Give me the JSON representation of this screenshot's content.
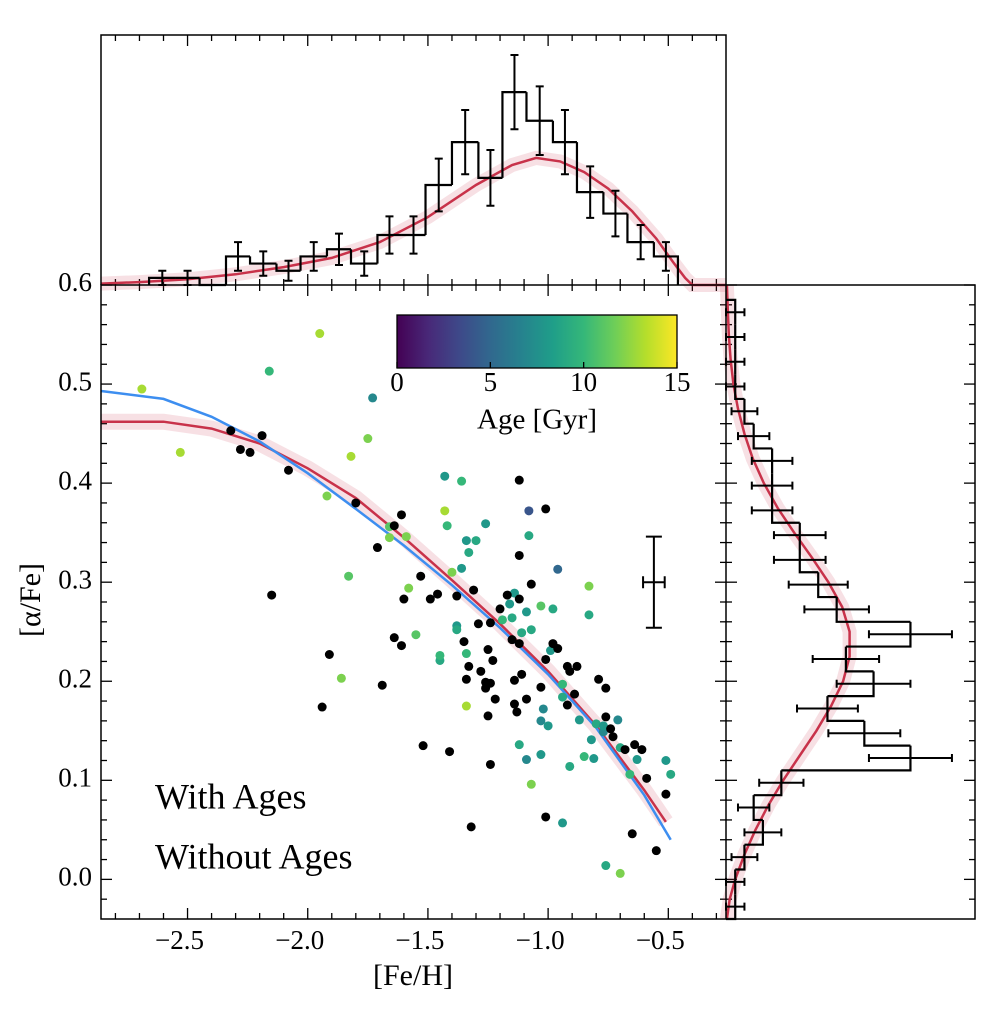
{
  "chart_data": [
    {
      "type": "scatter",
      "xlabel": "[Fe/H]",
      "ylabel": "[α/Fe]",
      "xlim": [
        -2.86,
        -0.26
      ],
      "ylim": [
        -0.04,
        0.6
      ],
      "xticks": [
        {
          "value": -2.5,
          "label": "−2.5"
        },
        {
          "value": -2.0,
          "label": "−2.0"
        },
        {
          "value": -1.5,
          "label": "−1.5"
        },
        {
          "value": -1.0,
          "label": "−1.0"
        },
        {
          "value": -0.5,
          "label": "−0.5"
        }
      ],
      "yticks": [
        {
          "value": 0.0,
          "label": "0.0"
        },
        0.1,
        0.2,
        0.3,
        0.4,
        0.5,
        0.6
      ],
      "xminorticks": [
        -2.8,
        -2.7,
        -2.6,
        -2.4,
        -2.3,
        -2.2,
        -2.1,
        -1.9,
        -1.8,
        -1.7,
        -1.6,
        -1.4,
        -1.3,
        -1.2,
        -1.1,
        -0.9,
        -0.8,
        -0.7,
        -0.6,
        -0.4,
        -0.3
      ],
      "yminorticks": [
        -0.02,
        0.02,
        0.04,
        0.06,
        0.08,
        0.12,
        0.14,
        0.16,
        0.18,
        0.22,
        0.24,
        0.26,
        0.28,
        0.32,
        0.34,
        0.36,
        0.38,
        0.42,
        0.44,
        0.46,
        0.48,
        0.52,
        0.54,
        0.56,
        0.58
      ],
      "points": {
        "x": [
          -2.69,
          -2.53,
          -1.95,
          -2.16,
          -1.73,
          -1.75,
          -1.82,
          -1.92,
          -1.83,
          -1.86,
          -1.66,
          -1.66,
          -1.59,
          -1.58,
          -1.55,
          -1.45,
          -1.45,
          -1.43,
          -1.36,
          -1.43,
          -1.42,
          -1.34,
          -1.3,
          -1.26,
          -1.33,
          -1.4,
          -1.36,
          -1.38,
          -1.38,
          -1.34,
          -1.34,
          -1.19,
          -1.15,
          -1.14,
          -1.16,
          -1.11,
          -1.09,
          -1.07,
          -1.03,
          -0.98,
          -0.99,
          -1.08,
          -1.08,
          -0.96,
          -0.83,
          -0.94,
          -0.94,
          -1.02,
          -1.03,
          -1.0,
          -0.87,
          -0.8,
          -0.77,
          -0.82,
          -0.71,
          -1.12,
          -1.09,
          -1.03,
          -0.91,
          -0.85,
          -0.81,
          -0.7,
          -0.63,
          -0.51,
          -0.49,
          -0.66,
          -1.07,
          -0.94,
          -0.76,
          -0.7,
          -0.83,
          -0.77,
          -2.32,
          -2.28,
          -2.19,
          -2.24,
          -2.08,
          -1.8,
          -1.71,
          -1.64,
          -1.61,
          -2.15,
          -1.91,
          -1.94,
          -1.69,
          -1.61,
          -1.64,
          -1.53,
          -1.52,
          -1.46,
          -1.38,
          -1.31,
          -1.35,
          -1.33,
          -1.28,
          -1.26,
          -1.26,
          -1.25,
          -1.25,
          -1.24,
          -1.32,
          -1.41,
          -1.34,
          -1.29,
          -1.24,
          -1.23,
          -1.15,
          -1.12,
          -1.14,
          -1.11,
          -1.09,
          -1.13,
          -1.12,
          -1.07,
          -1.12,
          -1.2,
          -1.17,
          -0.98,
          -1.01,
          -0.96,
          -0.92,
          -0.91,
          -0.89,
          -0.92,
          -0.88,
          -0.79,
          -0.76,
          -0.76,
          -0.74,
          -0.73,
          -0.68,
          -0.64,
          -0.61,
          -0.59,
          -0.51,
          -0.55,
          -0.65,
          -1.01,
          -1.14,
          -1.03,
          -1.24,
          -1.22,
          -1.12,
          -1.01,
          -1.6,
          -1.49
        ],
        "values": [
          0.495,
          0.431,
          0.551,
          0.513,
          0.486,
          0.445,
          0.427,
          0.387,
          0.306,
          0.203,
          0.356,
          0.345,
          0.346,
          0.294,
          0.247,
          0.221,
          0.226,
          0.407,
          0.402,
          0.372,
          0.357,
          0.342,
          0.342,
          0.359,
          0.33,
          0.31,
          0.314,
          0.256,
          0.252,
          0.228,
          0.175,
          0.262,
          0.264,
          0.289,
          0.278,
          0.249,
          0.27,
          0.252,
          0.276,
          0.273,
          0.231,
          0.372,
          0.347,
          0.313,
          0.296,
          0.197,
          0.184,
          0.172,
          0.16,
          0.155,
          0.161,
          0.157,
          0.149,
          0.141,
          0.161,
          0.136,
          0.121,
          0.126,
          0.114,
          0.124,
          0.122,
          0.133,
          0.121,
          0.12,
          0.106,
          0.106,
          0.096,
          0.057,
          0.014,
          0.006,
          0.267,
          0.155,
          0.453,
          0.434,
          0.448,
          0.431,
          0.413,
          0.38,
          0.335,
          0.357,
          0.368,
          0.287,
          0.227,
          0.174,
          0.196,
          0.236,
          0.244,
          0.306,
          0.135,
          0.288,
          0.286,
          0.292,
          0.24,
          0.215,
          0.21,
          0.199,
          0.193,
          0.165,
          0.232,
          0.116,
          0.053,
          0.129,
          0.202,
          0.258,
          0.259,
          0.221,
          0.242,
          0.238,
          0.201,
          0.207,
          0.182,
          0.169,
          0.327,
          0.298,
          0.283,
          0.273,
          0.287,
          0.238,
          0.222,
          0.233,
          0.215,
          0.21,
          0.187,
          0.176,
          0.215,
          0.202,
          0.193,
          0.164,
          0.152,
          0.144,
          0.131,
          0.136,
          0.131,
          0.102,
          0.086,
          0.029,
          0.046,
          0.063,
          0.177,
          0.194,
          0.198,
          0.182,
          0.403,
          0.374,
          0.283,
          0.283
        ],
        "age": [
          13,
          13,
          13,
          10,
          7,
          12,
          13,
          12,
          11,
          12,
          11,
          12,
          12,
          12,
          11,
          9,
          10,
          8,
          10,
          13,
          10,
          8,
          9,
          8,
          9,
          12,
          8,
          8,
          9,
          10,
          13,
          10,
          9,
          8,
          8,
          9,
          8,
          9,
          11,
          9,
          8,
          4,
          9,
          5,
          12,
          10,
          9,
          7,
          7,
          8,
          8,
          9,
          7,
          8,
          7,
          9,
          7,
          8,
          9,
          10,
          8,
          9,
          8,
          8,
          9,
          10,
          12,
          8,
          9,
          12,
          9,
          8,
          null,
          null,
          null,
          null,
          null,
          null,
          null,
          null,
          null,
          null,
          null,
          null,
          null,
          null,
          null,
          null,
          null,
          null,
          null,
          null,
          null,
          null,
          null,
          null,
          null,
          null,
          null,
          null,
          null,
          null,
          null,
          null,
          null,
          null,
          null,
          null,
          null,
          null,
          null,
          null,
          null,
          null,
          null,
          null,
          null,
          null,
          null,
          null,
          null,
          null,
          null,
          null,
          null,
          null,
          null,
          null,
          null,
          null,
          null,
          null,
          null,
          null,
          null,
          null,
          null,
          null,
          null,
          null,
          null,
          null,
          null,
          null,
          null,
          null
        ]
      },
      "no_age_color": "#000000",
      "colormap": [
        "#440154",
        "#482878",
        "#3e4989",
        "#31688e",
        "#26828e",
        "#1f9e89",
        "#35b779",
        "#6ece58",
        "#b5de2b",
        "#fde725"
      ],
      "colorbar": {
        "label": "Age [Gyr]",
        "lim": [
          0,
          15
        ],
        "ticks": [
          0,
          5,
          10,
          15
        ]
      },
      "series": [
        {
          "name": "With Ages",
          "color": "#c8324a",
          "uncertainty_band": true,
          "x": [
            -2.86,
            -2.6,
            -2.4,
            -2.2,
            -2.0,
            -1.8,
            -1.6,
            -1.4,
            -1.2,
            -1.0,
            -0.8,
            -0.6,
            -0.51
          ],
          "values": [
            0.462,
            0.462,
            0.455,
            0.44,
            0.415,
            0.385,
            0.345,
            0.302,
            0.258,
            0.21,
            0.155,
            0.09,
            0.058
          ]
        },
        {
          "name": "Without Ages",
          "color": "#3d8ef0",
          "x": [
            -2.86,
            -2.6,
            -2.4,
            -2.2,
            -2.0,
            -1.8,
            -1.6,
            -1.4,
            -1.2,
            -1.0,
            -0.8,
            -0.6,
            -0.49
          ],
          "values": [
            0.493,
            0.485,
            0.467,
            0.442,
            0.41,
            0.374,
            0.337,
            0.297,
            0.254,
            0.207,
            0.153,
            0.085,
            0.04
          ]
        }
      ],
      "legend": "lower left",
      "errorbar": {
        "x": -0.56,
        "y": 0.3,
        "xerr": 0.045,
        "yerr": 0.046
      }
    },
    {
      "type": "histogram",
      "color": "#000000",
      "xlim": [
        -2.86,
        -0.26
      ],
      "ylim": [
        0,
        35
      ],
      "bins": [
        -2.66,
        -2.55,
        -2.45,
        -2.34,
        -2.24,
        -2.13,
        -2.03,
        -1.92,
        -1.82,
        -1.71,
        -1.61,
        -1.51,
        -1.4,
        -1.29,
        -1.19,
        -1.09,
        -0.98,
        -0.88,
        -0.77,
        -0.67,
        -0.56,
        -0.46
      ],
      "values": [
        1,
        1,
        0,
        4,
        3,
        2,
        4,
        5,
        3,
        7,
        7,
        14,
        20,
        15,
        27,
        23,
        20,
        13,
        10,
        6,
        4
      ],
      "errors": [
        1,
        1,
        0,
        2,
        1.7,
        1.4,
        2,
        2.2,
        1.7,
        2.6,
        2.6,
        3.7,
        4.5,
        3.9,
        5.2,
        4.8,
        4.5,
        3.6,
        3.2,
        2.4,
        2
      ],
      "model": {
        "color": "#c8324a",
        "uncertainty_band": true,
        "x": [
          -2.86,
          -2.7,
          -2.5,
          -2.3,
          -2.1,
          -1.9,
          -1.7,
          -1.5,
          -1.3,
          -1.15,
          -1.05,
          -0.95,
          -0.85,
          -0.75,
          -0.65,
          -0.55,
          -0.48,
          -0.43,
          -0.4,
          -0.26
        ],
        "values": [
          0.2,
          0.4,
          0.8,
          1.5,
          2.5,
          3.8,
          6,
          9.5,
          14,
          16.8,
          17.8,
          17.3,
          15.8,
          13.5,
          10.3,
          6.5,
          3.2,
          1,
          0,
          0
        ]
      }
    },
    {
      "type": "histogram",
      "orientation": "horizontal",
      "color": "#000000",
      "xlim": [
        0,
        27
      ],
      "ylim": [
        -0.04,
        0.6
      ],
      "bins": [
        -0.04,
        -0.015,
        0.01,
        0.035,
        0.06,
        0.085,
        0.11,
        0.135,
        0.16,
        0.185,
        0.21,
        0.235,
        0.26,
        0.285,
        0.31,
        0.335,
        0.36,
        0.385,
        0.41,
        0.435,
        0.46,
        0.485,
        0.51,
        0.535,
        0.56,
        0.585
      ],
      "values": [
        1,
        1,
        2,
        4,
        3,
        6,
        20,
        15,
        11,
        16,
        13,
        20,
        12,
        10,
        8,
        8,
        5,
        5,
        5,
        3,
        2,
        1,
        1,
        1,
        1
      ],
      "errors": [
        1,
        1,
        1.4,
        2,
        1.7,
        2.4,
        4.5,
        3.9,
        3.3,
        4,
        3.6,
        4.5,
        3.5,
        3.2,
        2.8,
        2.8,
        2.2,
        2.2,
        2.2,
        1.7,
        1.4,
        1,
        1,
        1,
        1
      ],
      "model": {
        "color": "#c8324a",
        "uncertainty_band": true,
        "y": [
          -0.04,
          -0.02,
          0,
          0.025,
          0.05,
          0.075,
          0.1,
          0.125,
          0.15,
          0.175,
          0.2,
          0.225,
          0.25,
          0.275,
          0.3,
          0.325,
          0.35,
          0.375,
          0.4,
          0.425,
          0.45,
          0.475,
          0.5,
          0.525,
          0.55,
          0.575,
          0.6
        ],
        "values": [
          0.1,
          0.4,
          1,
          2,
          3.2,
          4.6,
          6.2,
          8,
          9.8,
          11.4,
          12.7,
          13.4,
          13.4,
          12.6,
          11.1,
          9.3,
          7.4,
          5.6,
          4.1,
          2.9,
          2,
          1.3,
          0.8,
          0.5,
          0.3,
          0.2,
          0.1
        ]
      }
    }
  ]
}
